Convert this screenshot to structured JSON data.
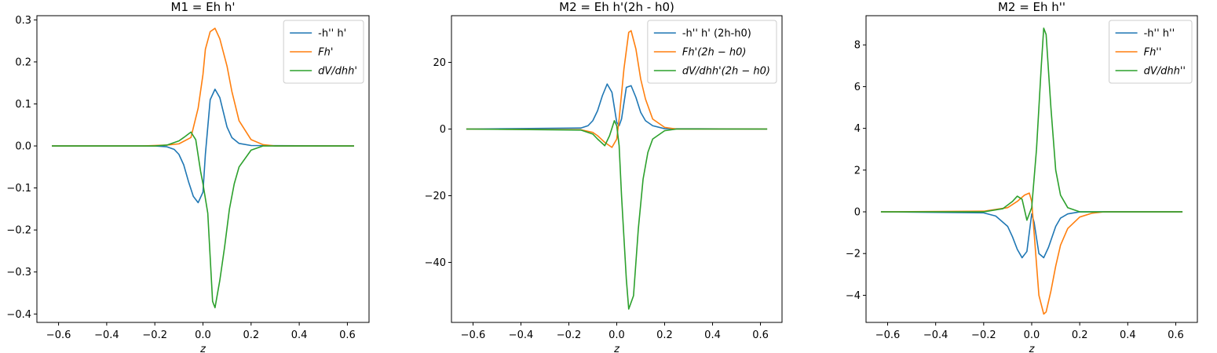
{
  "chart_data": [
    {
      "type": "line",
      "title": "M1 = Eh h'",
      "xlabel": "z",
      "xlim": [
        -0.69,
        0.69
      ],
      "ylim": [
        -0.42,
        0.31
      ],
      "xticks": [
        -0.6,
        -0.4,
        -0.2,
        0.0,
        0.2,
        0.4,
        0.6
      ],
      "xtick_labels": [
        "−0.6",
        "−0.4",
        "−0.2",
        "0.0",
        "0.2",
        "0.4",
        "0.6"
      ],
      "yticks": [
        -0.4,
        -0.3,
        -0.2,
        -0.1,
        0.0,
        0.1,
        0.2,
        0.3
      ],
      "ytick_labels": [
        "−0.4",
        "−0.3",
        "−0.2",
        "−0.1",
        "0.0",
        "0.1",
        "0.2",
        "0.3"
      ],
      "legend_position": "top-right",
      "series": [
        {
          "name": "-h'' h'",
          "math": false,
          "color": "#1f77b4",
          "x": [
            -0.628,
            -0.2,
            -0.15,
            -0.12,
            -0.1,
            -0.08,
            -0.06,
            -0.04,
            -0.02,
            0.0,
            0.01,
            0.03,
            0.05,
            0.07,
            0.1,
            0.12,
            0.15,
            0.2,
            0.628
          ],
          "y": [
            0.0,
            0.0,
            -0.002,
            -0.008,
            -0.02,
            -0.045,
            -0.085,
            -0.12,
            -0.135,
            -0.11,
            -0.02,
            0.11,
            0.135,
            0.115,
            0.045,
            0.02,
            0.006,
            0.001,
            0.0
          ]
        },
        {
          "name": "Fh'",
          "math": true,
          "color": "#ff7f0e",
          "x": [
            -0.628,
            -0.25,
            -0.15,
            -0.1,
            -0.05,
            -0.02,
            0.0,
            0.01,
            0.03,
            0.05,
            0.07,
            0.1,
            0.12,
            0.15,
            0.2,
            0.25,
            0.3,
            0.628
          ],
          "y": [
            0.0,
            0.0,
            0.002,
            0.005,
            0.02,
            0.09,
            0.17,
            0.23,
            0.272,
            0.28,
            0.255,
            0.19,
            0.13,
            0.06,
            0.015,
            0.003,
            0.0,
            0.0
          ]
        },
        {
          "name": "dV/dhh'",
          "math": true,
          "color": "#2ca02c",
          "x": [
            -0.628,
            -0.2,
            -0.15,
            -0.1,
            -0.08,
            -0.05,
            -0.03,
            -0.01,
            0.0,
            0.02,
            0.04,
            0.05,
            0.07,
            0.09,
            0.11,
            0.13,
            0.15,
            0.2,
            0.25,
            0.628
          ],
          "y": [
            0.0,
            0.0,
            0.002,
            0.012,
            0.02,
            0.033,
            0.015,
            -0.06,
            -0.09,
            -0.16,
            -0.37,
            -0.385,
            -0.32,
            -0.24,
            -0.15,
            -0.09,
            -0.05,
            -0.01,
            0.0,
            0.0
          ]
        }
      ]
    },
    {
      "type": "line",
      "title": "M2 = Eh h'(2h - h0)",
      "xlabel": "z",
      "xlim": [
        -0.69,
        0.69
      ],
      "ylim": [
        -58,
        34
      ],
      "xticks": [
        -0.6,
        -0.4,
        -0.2,
        0.0,
        0.2,
        0.4,
        0.6
      ],
      "xtick_labels": [
        "−0.6",
        "−0.4",
        "−0.2",
        "0.0",
        "0.2",
        "0.4",
        "0.6"
      ],
      "yticks": [
        -40,
        -20,
        0,
        20
      ],
      "ytick_labels": [
        "−40",
        "−20",
        "0",
        "20"
      ],
      "legend_position": "top-right",
      "series": [
        {
          "name": "-h'' h' (2h-h0)",
          "math": false,
          "color": "#1f77b4",
          "x": [
            -0.628,
            -0.15,
            -0.12,
            -0.1,
            -0.08,
            -0.06,
            -0.04,
            -0.02,
            0.0,
            0.01,
            0.02,
            0.04,
            0.06,
            0.08,
            0.1,
            0.12,
            0.15,
            0.2,
            0.628
          ],
          "y": [
            0.0,
            0.3,
            1.0,
            2.5,
            5.5,
            10.0,
            13.5,
            11.0,
            2.0,
            1.0,
            3.0,
            12.5,
            13.0,
            9.5,
            5.0,
            2.5,
            1.0,
            0.1,
            0.0
          ]
        },
        {
          "name": "Fh'(2h − h0)",
          "math": true,
          "color": "#ff7f0e",
          "x": [
            -0.628,
            -0.15,
            -0.1,
            -0.08,
            -0.05,
            -0.02,
            0.0,
            0.01,
            0.03,
            0.05,
            0.06,
            0.08,
            0.1,
            0.12,
            0.15,
            0.2,
            0.25,
            0.628
          ],
          "y": [
            0.0,
            -0.2,
            -1.0,
            -2.0,
            -4.0,
            -5.5,
            -3.0,
            3.0,
            18.0,
            29.0,
            29.5,
            24.0,
            15.0,
            9.0,
            3.0,
            0.5,
            0.0,
            0.0
          ]
        },
        {
          "name": "dV/dhh'(2h − h0)",
          "math": true,
          "color": "#2ca02c",
          "x": [
            -0.628,
            -0.15,
            -0.1,
            -0.08,
            -0.05,
            -0.03,
            -0.01,
            0.0,
            0.01,
            0.02,
            0.04,
            0.05,
            0.07,
            0.09,
            0.11,
            0.13,
            0.15,
            0.2,
            0.25,
            0.628
          ],
          "y": [
            0.0,
            -0.3,
            -1.5,
            -3.0,
            -5.0,
            -2.0,
            2.5,
            1.0,
            -5.0,
            -20.0,
            -45.0,
            -54.0,
            -50.0,
            -30.0,
            -15.0,
            -7.0,
            -3.0,
            -0.5,
            0.0,
            0.0
          ]
        }
      ]
    },
    {
      "type": "line",
      "title": "M2 = Eh h''",
      "xlabel": "z",
      "xlim": [
        -0.69,
        0.69
      ],
      "ylim": [
        -5.3,
        9.4
      ],
      "xticks": [
        -0.6,
        -0.4,
        -0.2,
        0.0,
        0.2,
        0.4,
        0.6
      ],
      "xtick_labels": [
        "−0.6",
        "−0.4",
        "−0.2",
        "0.0",
        "0.2",
        "0.4",
        "0.6"
      ],
      "yticks": [
        -4,
        -2,
        0,
        2,
        4,
        6,
        8
      ],
      "ytick_labels": [
        "−4",
        "−2",
        "0",
        "2",
        "4",
        "6",
        "8"
      ],
      "legend_position": "top-right",
      "series": [
        {
          "name": "-h'' h''",
          "math": false,
          "color": "#1f77b4",
          "x": [
            -0.628,
            -0.2,
            -0.15,
            -0.1,
            -0.08,
            -0.06,
            -0.04,
            -0.02,
            0.0,
            0.01,
            0.03,
            0.05,
            0.07,
            0.1,
            0.12,
            0.15,
            0.2,
            0.628
          ],
          "y": [
            0.0,
            -0.05,
            -0.2,
            -0.7,
            -1.2,
            -1.8,
            -2.2,
            -1.9,
            -0.1,
            -0.5,
            -2.0,
            -2.2,
            -1.7,
            -0.7,
            -0.3,
            -0.1,
            0.0,
            0.0
          ]
        },
        {
          "name": "Fh''",
          "math": true,
          "color": "#ff7f0e",
          "x": [
            -0.628,
            -0.2,
            -0.1,
            -0.06,
            -0.03,
            -0.01,
            0.0,
            0.01,
            0.03,
            0.05,
            0.06,
            0.08,
            0.1,
            0.12,
            0.15,
            0.2,
            0.25,
            0.3,
            0.628
          ],
          "y": [
            0.0,
            0.03,
            0.2,
            0.5,
            0.8,
            0.9,
            0.5,
            -1.0,
            -4.0,
            -4.9,
            -4.8,
            -3.8,
            -2.6,
            -1.6,
            -0.8,
            -0.25,
            -0.07,
            0.0,
            0.0
          ]
        },
        {
          "name": "dV/dhh''",
          "math": true,
          "color": "#2ca02c",
          "x": [
            -0.628,
            -0.2,
            -0.12,
            -0.08,
            -0.06,
            -0.04,
            -0.02,
            0.0,
            0.02,
            0.04,
            0.05,
            0.06,
            0.08,
            0.1,
            0.12,
            0.15,
            0.2,
            0.628
          ],
          "y": [
            0.0,
            0.0,
            0.15,
            0.5,
            0.75,
            0.6,
            -0.4,
            0.2,
            3.0,
            7.0,
            8.8,
            8.5,
            5.0,
            2.0,
            0.8,
            0.2,
            0.0,
            0.0
          ]
        }
      ]
    }
  ]
}
